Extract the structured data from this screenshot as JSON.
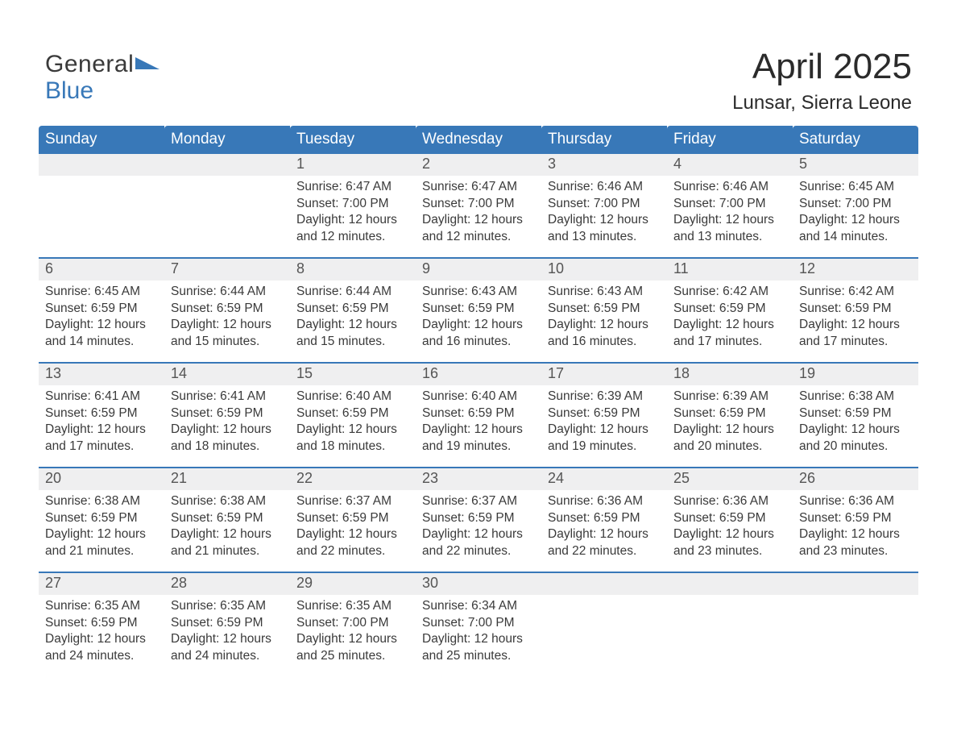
{
  "brand": {
    "line1": "General",
    "line2": "Blue",
    "accent_color": "#3878b8"
  },
  "title": "April 2025",
  "location": "Lunsar, Sierra Leone",
  "colors": {
    "header_bg": "#3878b8",
    "header_text": "#ffffff",
    "daynum_bg": "#efeff0",
    "week_divider": "#3878b8",
    "body_text": "#3a3a3a",
    "page_bg": "#ffffff"
  },
  "typography": {
    "title_fontsize_pt": 33,
    "location_fontsize_pt": 18,
    "header_fontsize_pt": 14,
    "daynum_fontsize_pt": 14,
    "body_fontsize_pt": 12,
    "font_family": "Arial"
  },
  "calendar": {
    "month": 4,
    "year": 2025,
    "first_weekday_index": 2,
    "days_in_month": 30,
    "columns": [
      "Sunday",
      "Monday",
      "Tuesday",
      "Wednesday",
      "Thursday",
      "Friday",
      "Saturday"
    ],
    "labels": {
      "sunrise": "Sunrise",
      "sunset": "Sunset",
      "daylight": "Daylight"
    },
    "days": [
      {
        "n": 1,
        "sunrise": "6:47 AM",
        "sunset": "7:00 PM",
        "daylight": "12 hours and 12 minutes."
      },
      {
        "n": 2,
        "sunrise": "6:47 AM",
        "sunset": "7:00 PM",
        "daylight": "12 hours and 12 minutes."
      },
      {
        "n": 3,
        "sunrise": "6:46 AM",
        "sunset": "7:00 PM",
        "daylight": "12 hours and 13 minutes."
      },
      {
        "n": 4,
        "sunrise": "6:46 AM",
        "sunset": "7:00 PM",
        "daylight": "12 hours and 13 minutes."
      },
      {
        "n": 5,
        "sunrise": "6:45 AM",
        "sunset": "7:00 PM",
        "daylight": "12 hours and 14 minutes."
      },
      {
        "n": 6,
        "sunrise": "6:45 AM",
        "sunset": "6:59 PM",
        "daylight": "12 hours and 14 minutes."
      },
      {
        "n": 7,
        "sunrise": "6:44 AM",
        "sunset": "6:59 PM",
        "daylight": "12 hours and 15 minutes."
      },
      {
        "n": 8,
        "sunrise": "6:44 AM",
        "sunset": "6:59 PM",
        "daylight": "12 hours and 15 minutes."
      },
      {
        "n": 9,
        "sunrise": "6:43 AM",
        "sunset": "6:59 PM",
        "daylight": "12 hours and 16 minutes."
      },
      {
        "n": 10,
        "sunrise": "6:43 AM",
        "sunset": "6:59 PM",
        "daylight": "12 hours and 16 minutes."
      },
      {
        "n": 11,
        "sunrise": "6:42 AM",
        "sunset": "6:59 PM",
        "daylight": "12 hours and 17 minutes."
      },
      {
        "n": 12,
        "sunrise": "6:42 AM",
        "sunset": "6:59 PM",
        "daylight": "12 hours and 17 minutes."
      },
      {
        "n": 13,
        "sunrise": "6:41 AM",
        "sunset": "6:59 PM",
        "daylight": "12 hours and 17 minutes."
      },
      {
        "n": 14,
        "sunrise": "6:41 AM",
        "sunset": "6:59 PM",
        "daylight": "12 hours and 18 minutes."
      },
      {
        "n": 15,
        "sunrise": "6:40 AM",
        "sunset": "6:59 PM",
        "daylight": "12 hours and 18 minutes."
      },
      {
        "n": 16,
        "sunrise": "6:40 AM",
        "sunset": "6:59 PM",
        "daylight": "12 hours and 19 minutes."
      },
      {
        "n": 17,
        "sunrise": "6:39 AM",
        "sunset": "6:59 PM",
        "daylight": "12 hours and 19 minutes."
      },
      {
        "n": 18,
        "sunrise": "6:39 AM",
        "sunset": "6:59 PM",
        "daylight": "12 hours and 20 minutes."
      },
      {
        "n": 19,
        "sunrise": "6:38 AM",
        "sunset": "6:59 PM",
        "daylight": "12 hours and 20 minutes."
      },
      {
        "n": 20,
        "sunrise": "6:38 AM",
        "sunset": "6:59 PM",
        "daylight": "12 hours and 21 minutes."
      },
      {
        "n": 21,
        "sunrise": "6:38 AM",
        "sunset": "6:59 PM",
        "daylight": "12 hours and 21 minutes."
      },
      {
        "n": 22,
        "sunrise": "6:37 AM",
        "sunset": "6:59 PM",
        "daylight": "12 hours and 22 minutes."
      },
      {
        "n": 23,
        "sunrise": "6:37 AM",
        "sunset": "6:59 PM",
        "daylight": "12 hours and 22 minutes."
      },
      {
        "n": 24,
        "sunrise": "6:36 AM",
        "sunset": "6:59 PM",
        "daylight": "12 hours and 22 minutes."
      },
      {
        "n": 25,
        "sunrise": "6:36 AM",
        "sunset": "6:59 PM",
        "daylight": "12 hours and 23 minutes."
      },
      {
        "n": 26,
        "sunrise": "6:36 AM",
        "sunset": "6:59 PM",
        "daylight": "12 hours and 23 minutes."
      },
      {
        "n": 27,
        "sunrise": "6:35 AM",
        "sunset": "6:59 PM",
        "daylight": "12 hours and 24 minutes."
      },
      {
        "n": 28,
        "sunrise": "6:35 AM",
        "sunset": "6:59 PM",
        "daylight": "12 hours and 24 minutes."
      },
      {
        "n": 29,
        "sunrise": "6:35 AM",
        "sunset": "7:00 PM",
        "daylight": "12 hours and 25 minutes."
      },
      {
        "n": 30,
        "sunrise": "6:34 AM",
        "sunset": "7:00 PM",
        "daylight": "12 hours and 25 minutes."
      }
    ]
  }
}
